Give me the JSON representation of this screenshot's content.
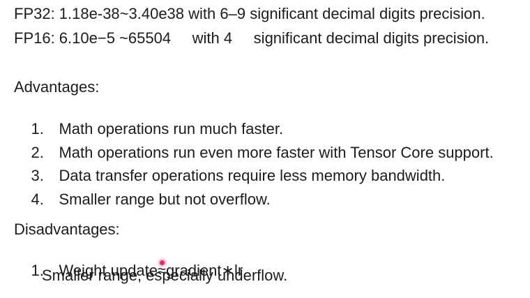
{
  "precision": {
    "fp32": "FP32: 1.18e-38~3.40e38 with 6–9 significant decimal digits precision.",
    "fp16": "FP16: 6.10e−5 ~65504     with 4     significant decimal digits precision."
  },
  "advantages": {
    "heading": "Advantages:",
    "items": [
      {
        "num": "1.",
        "text": "Math operations run much faster."
      },
      {
        "num": "2.",
        "text": "Math operations run even more faster with Tensor Core support."
      },
      {
        "num": "3.",
        "text": "Data transfer operations require less memory bandwidth."
      },
      {
        "num": "4.",
        "text": "Smaller range but not overflow."
      }
    ]
  },
  "disadvantages": {
    "heading": "Disadvantages:",
    "items": [
      {
        "num": "1.",
        "text": "Weight update≈gradient∗lr",
        "continuation": "Smaller range, especially underflow."
      }
    ]
  },
  "colors": {
    "text": "#1c1c1c",
    "background": "#ffffff",
    "cursor": "#e0306a"
  },
  "icons": {
    "pointer": "laser-pointer-dot"
  }
}
